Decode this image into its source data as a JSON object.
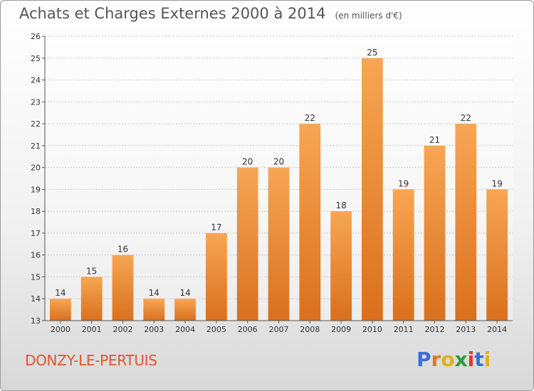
{
  "header": {
    "title": "Achats et Charges Externes 2000 à 2014",
    "unit": "(en milliers d'€)"
  },
  "footer": {
    "commune": "DONZY-LE-PERTUIS",
    "logo_text": "Proxiti"
  },
  "colors": {
    "bar_light": "#f7a654",
    "bar_dark": "#d9701e",
    "commune_text": "#e0542a",
    "logo_letters": [
      "#3a6fd8",
      "#e07a1f",
      "#e0b21a",
      "#2e9b3a",
      "#d63a2b",
      "#3a6fd8",
      "#e0b21a"
    ]
  },
  "chart_data": {
    "type": "bar",
    "categories": [
      "2000",
      "2001",
      "2002",
      "2003",
      "2004",
      "2005",
      "2006",
      "2007",
      "2008",
      "2009",
      "2010",
      "2011",
      "2012",
      "2013",
      "2014"
    ],
    "values": [
      14,
      15,
      16,
      14,
      14,
      17,
      20,
      20,
      22,
      18,
      25,
      19,
      21,
      22,
      19
    ],
    "title": "Achats et Charges Externes 2000 à 2014",
    "xlabel": "",
    "ylabel": "",
    "ylim": [
      13,
      26
    ],
    "yticks": [
      13,
      14,
      15,
      16,
      17,
      18,
      19,
      20,
      21,
      22,
      23,
      24,
      25,
      26
    ],
    "grid": true,
    "data_labels": true
  }
}
